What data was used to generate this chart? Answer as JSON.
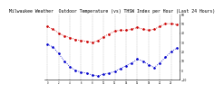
{
  "title": "Milwaukee Weather  Outdoor Temperature (vs) THSW Index per Hour (Last 24 Hours)",
  "hours": [
    0,
    1,
    2,
    3,
    4,
    5,
    6,
    7,
    8,
    9,
    10,
    11,
    12,
    13,
    14,
    15,
    16,
    17,
    18,
    19,
    20,
    21,
    22,
    23
  ],
  "temp": [
    47,
    44,
    40,
    37,
    35,
    33,
    32,
    31,
    30,
    32,
    36,
    39,
    42,
    43,
    43,
    44,
    46,
    44,
    43,
    44,
    47,
    50,
    50,
    49
  ],
  "thsw": [
    28,
    25,
    18,
    10,
    4,
    0,
    -2,
    -3,
    -5,
    -6,
    -4,
    -3,
    -1,
    2,
    5,
    8,
    12,
    10,
    6,
    3,
    8,
    14,
    20,
    24
  ],
  "temp_color": "#cc0000",
  "thsw_color": "#0000cc",
  "background_color": "#ffffff",
  "grid_color": "#aaaaaa",
  "ylim_min": -10,
  "ylim_max": 60,
  "ytick_values": [
    60,
    50,
    40,
    30,
    20,
    10,
    0,
    -10
  ],
  "x_tick_hours": [
    0,
    2,
    4,
    6,
    8,
    10,
    12,
    14,
    16,
    18,
    20,
    22
  ],
  "title_fontsize": 3.5,
  "marker_size": 1.8,
  "line_width": 0.6
}
